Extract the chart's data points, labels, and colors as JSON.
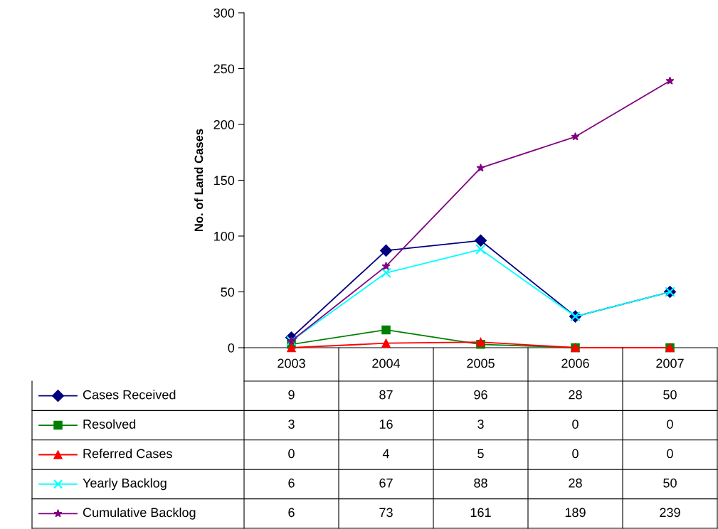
{
  "chart_data": {
    "type": "line",
    "ylabel": "No. of Land Cases",
    "categories": [
      "2003",
      "2004",
      "2005",
      "2006",
      "2007"
    ],
    "ylim": [
      0,
      300
    ],
    "yticks": [
      0,
      50,
      100,
      150,
      200,
      250,
      300
    ],
    "grid": false,
    "legend": "bottom",
    "data_labels": true,
    "line_style": "solid",
    "series": [
      {
        "name": "Cases Received",
        "color": "#000080",
        "marker": "diamond",
        "values": [
          9,
          87,
          96,
          28,
          50
        ]
      },
      {
        "name": "Resolved",
        "color": "#008000",
        "marker": "square",
        "values": [
          3,
          16,
          3,
          0,
          0
        ]
      },
      {
        "name": "Referred Cases",
        "color": "#ff0000",
        "marker": "triangle",
        "values": [
          0,
          4,
          5,
          0,
          0
        ]
      },
      {
        "name": "Yearly Backlog",
        "color": "#00ffff",
        "marker": "cross",
        "values": [
          6,
          67,
          88,
          28,
          50
        ]
      },
      {
        "name": "Cumulative Backlog",
        "color": "#800080",
        "marker": "star",
        "values": [
          6,
          73,
          161,
          189,
          239
        ]
      }
    ]
  }
}
